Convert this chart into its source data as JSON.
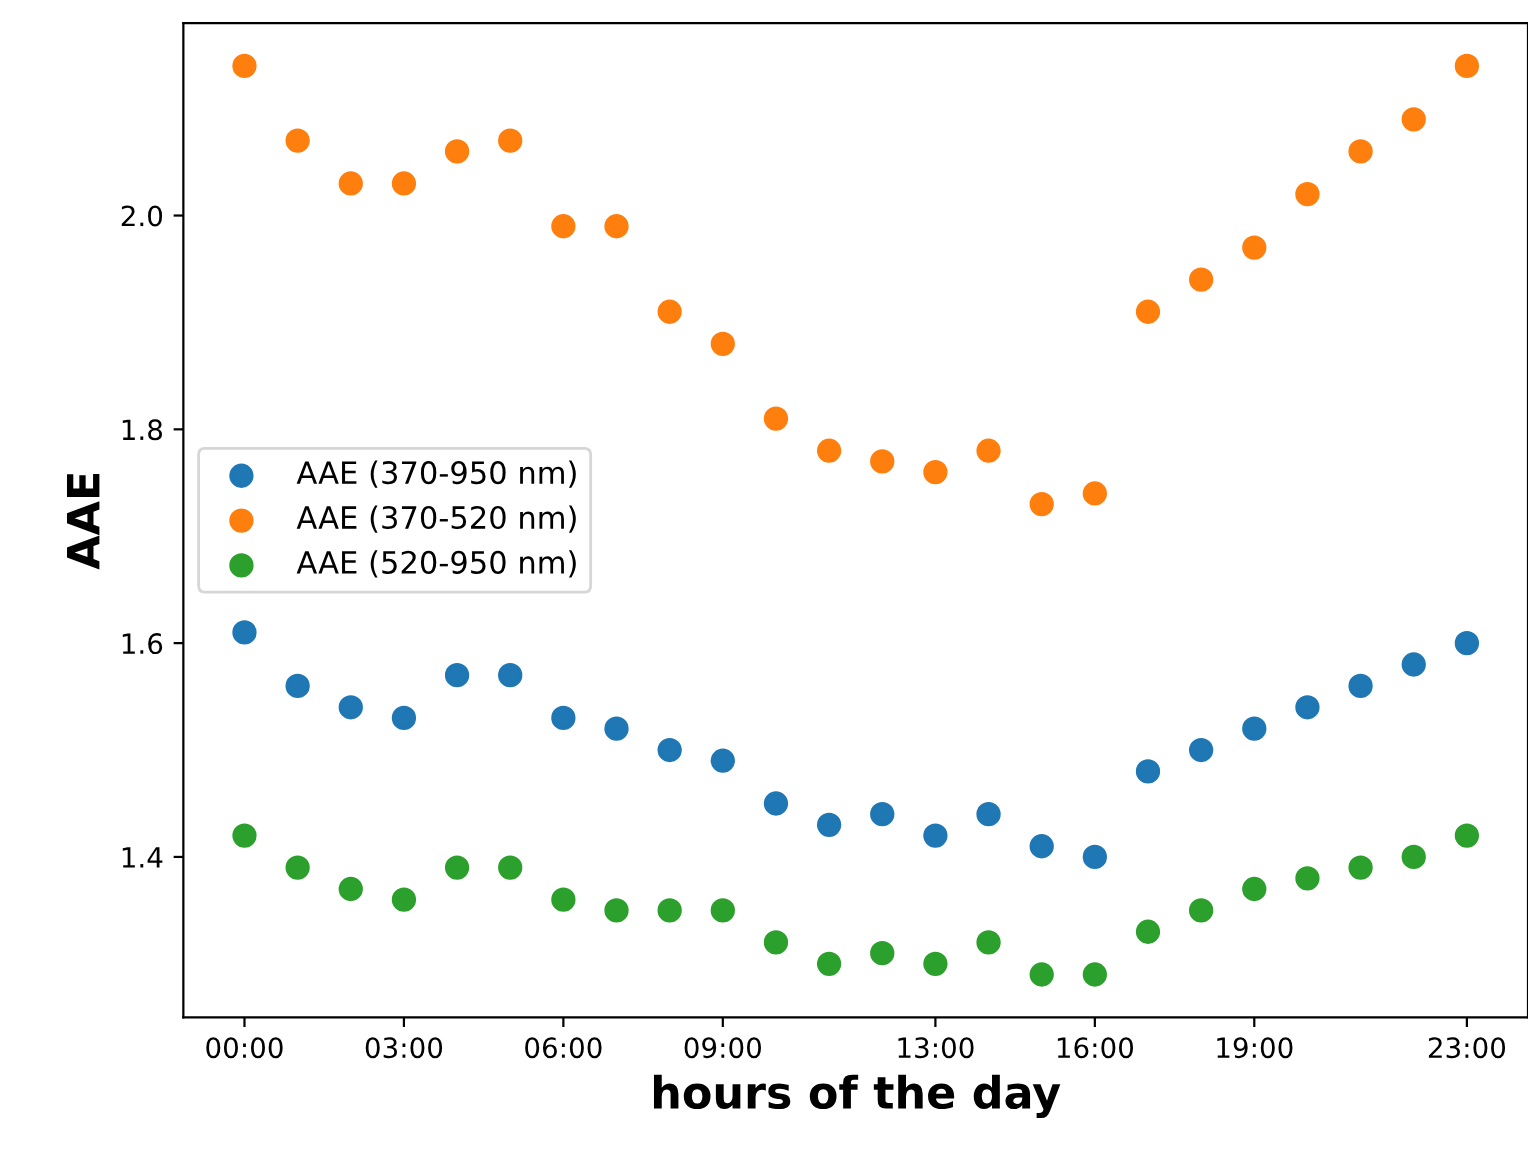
{
  "chart_data": {
    "type": "scatter",
    "xlabel": "hours of the day",
    "ylabel": "AAE",
    "x": [
      0,
      1,
      2,
      3,
      4,
      5,
      6,
      7,
      8,
      9,
      10,
      11,
      12,
      13,
      14,
      15,
      16,
      17,
      18,
      19,
      20,
      21,
      22,
      23
    ],
    "series": [
      {
        "name": "AAE (370-950 nm)",
        "color": "#1f77b4",
        "values": [
          1.61,
          1.56,
          1.54,
          1.53,
          1.57,
          1.57,
          1.53,
          1.52,
          1.5,
          1.49,
          1.45,
          1.43,
          1.44,
          1.42,
          1.44,
          1.41,
          1.4,
          1.48,
          1.5,
          1.52,
          1.54,
          1.56,
          1.58,
          1.6
        ]
      },
      {
        "name": "AAE (370-520 nm)",
        "color": "#ff7f0e",
        "values": [
          2.14,
          2.07,
          2.03,
          2.03,
          2.06,
          2.07,
          1.99,
          1.99,
          1.91,
          1.88,
          1.81,
          1.78,
          1.77,
          1.76,
          1.78,
          1.73,
          1.74,
          1.91,
          1.94,
          1.97,
          2.02,
          2.06,
          2.09,
          2.14
        ]
      },
      {
        "name": "AAE (520-950 nm)",
        "color": "#2ca02c",
        "values": [
          1.42,
          1.39,
          1.37,
          1.36,
          1.39,
          1.39,
          1.36,
          1.35,
          1.35,
          1.35,
          1.32,
          1.3,
          1.31,
          1.3,
          1.32,
          1.29,
          1.29,
          1.33,
          1.35,
          1.37,
          1.38,
          1.39,
          1.4,
          1.42
        ]
      }
    ],
    "xlim": [
      -1.15,
      24.15
    ],
    "ylim": [
      1.25,
      2.18
    ],
    "xticks": [
      {
        "value": 0,
        "label": "00:00"
      },
      {
        "value": 3,
        "label": "03:00"
      },
      {
        "value": 6,
        "label": "06:00"
      },
      {
        "value": 9,
        "label": "09:00"
      },
      {
        "value": 13,
        "label": "13:00"
      },
      {
        "value": 16,
        "label": "16:00"
      },
      {
        "value": 19,
        "label": "19:00"
      },
      {
        "value": 23,
        "label": "23:00"
      }
    ],
    "yticks": [
      1.4,
      1.6,
      1.8,
      {
        "value": 2.0,
        "label": "2.0"
      }
    ],
    "marker": "circle",
    "legend": "center left",
    "grid": false
  }
}
